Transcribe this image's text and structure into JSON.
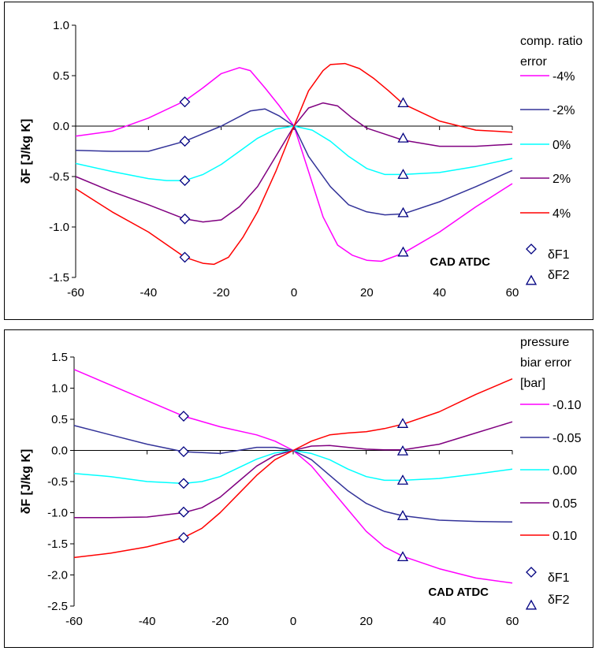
{
  "chart_data": [
    {
      "type": "line",
      "ylabel": "δF [J/kg K]",
      "annotation": "CAD ATDC",
      "xlim": [
        -60,
        60
      ],
      "ylim": [
        -1.5,
        1.0
      ],
      "xticks": [
        "-60",
        "-40",
        "-20",
        "0",
        "20",
        "40",
        "60"
      ],
      "yticks": [
        "1.0",
        "0.5",
        "0.0",
        "-0.5",
        "-1.0",
        "-1.5"
      ],
      "legend_title": [
        "comp. ratio",
        "error"
      ],
      "legend_placement": "right",
      "grid": false,
      "series": [
        {
          "name": "-4%",
          "color": "#ff00ff",
          "x": [
            -60,
            -50,
            -40,
            -30,
            -25,
            -20,
            -15,
            -12,
            -8,
            -4,
            0,
            4,
            8,
            12,
            16,
            20,
            24,
            30,
            40,
            50,
            60
          ],
          "y": [
            -0.1,
            -0.05,
            0.08,
            0.25,
            0.38,
            0.52,
            0.58,
            0.55,
            0.38,
            0.2,
            0.0,
            -0.45,
            -0.9,
            -1.18,
            -1.28,
            -1.33,
            -1.34,
            -1.26,
            -1.05,
            -0.8,
            -0.57
          ]
        },
        {
          "name": "-2%",
          "color": "#333399",
          "x": [
            -60,
            -50,
            -40,
            -30,
            -20,
            -12,
            -8,
            -4,
            0,
            4,
            10,
            15,
            20,
            25,
            30,
            40,
            50,
            60
          ],
          "y": [
            -0.24,
            -0.25,
            -0.25,
            -0.15,
            0.0,
            0.15,
            0.17,
            0.1,
            0.0,
            -0.3,
            -0.6,
            -0.78,
            -0.85,
            -0.88,
            -0.87,
            -0.75,
            -0.6,
            -0.44
          ]
        },
        {
          "name": "0%",
          "color": "#00ffff",
          "x": [
            -60,
            -50,
            -40,
            -35,
            -30,
            -25,
            -20,
            -15,
            -10,
            -5,
            0,
            5,
            10,
            15,
            20,
            25,
            30,
            40,
            50,
            60
          ],
          "y": [
            -0.37,
            -0.45,
            -0.52,
            -0.54,
            -0.54,
            -0.48,
            -0.38,
            -0.25,
            -0.12,
            -0.03,
            0.0,
            -0.04,
            -0.15,
            -0.3,
            -0.42,
            -0.48,
            -0.48,
            -0.46,
            -0.4,
            -0.32
          ]
        },
        {
          "name": "2%",
          "color": "#800080",
          "x": [
            -60,
            -50,
            -40,
            -30,
            -25,
            -20,
            -15,
            -10,
            -5,
            0,
            4,
            8,
            12,
            16,
            20,
            25,
            30,
            40,
            50,
            60
          ],
          "y": [
            -0.5,
            -0.65,
            -0.78,
            -0.92,
            -0.95,
            -0.93,
            -0.8,
            -0.6,
            -0.3,
            0.0,
            0.18,
            0.23,
            0.2,
            0.08,
            -0.02,
            -0.08,
            -0.14,
            -0.2,
            -0.2,
            -0.18
          ]
        },
        {
          "name": "4%",
          "color": "#ff0000",
          "x": [
            -60,
            -50,
            -40,
            -30,
            -25,
            -22,
            -18,
            -14,
            -10,
            -5,
            0,
            4,
            8,
            10,
            14,
            18,
            22,
            26,
            30,
            40,
            50,
            60
          ],
          "y": [
            -0.62,
            -0.85,
            -1.05,
            -1.3,
            -1.36,
            -1.37,
            -1.3,
            -1.1,
            -0.85,
            -0.45,
            0.0,
            0.35,
            0.55,
            0.61,
            0.62,
            0.57,
            0.47,
            0.35,
            0.22,
            0.05,
            -0.04,
            -0.06
          ]
        }
      ],
      "markers": [
        {
          "name": "δF1",
          "symbol": "diamond",
          "x": -30,
          "y": [
            0.24,
            -0.15,
            -0.54,
            -0.92,
            -1.3
          ]
        },
        {
          "name": "δF2",
          "symbol": "triangle",
          "x": 30,
          "y": [
            0.23,
            -0.12,
            -0.48,
            -0.86,
            -1.25
          ]
        }
      ]
    },
    {
      "type": "line",
      "ylabel": "δF [J/kg K]",
      "annotation": "CAD ATDC",
      "xlim": [
        -60,
        60
      ],
      "ylim": [
        -2.5,
        1.5
      ],
      "xticks": [
        "-60",
        "-40",
        "-20",
        "0",
        "20",
        "40",
        "60"
      ],
      "yticks": [
        "1.5",
        "1.0",
        "0.5",
        "0.0",
        "-0.5",
        "-1.0",
        "-1.5",
        "-2.0",
        "-2.5"
      ],
      "legend_title": [
        "pressure",
        "biar error",
        "[bar]"
      ],
      "legend_placement": "right",
      "grid": false,
      "series": [
        {
          "name": "-0.10",
          "color": "#ff00ff",
          "x": [
            -60,
            -50,
            -40,
            -30,
            -20,
            -10,
            -5,
            0,
            5,
            10,
            15,
            20,
            25,
            30,
            40,
            50,
            60
          ],
          "y": [
            1.3,
            1.05,
            0.8,
            0.55,
            0.38,
            0.25,
            0.15,
            0.0,
            -0.25,
            -0.6,
            -0.95,
            -1.3,
            -1.55,
            -1.7,
            -1.9,
            -2.05,
            -2.13
          ]
        },
        {
          "name": "-0.05",
          "color": "#333399",
          "x": [
            -60,
            -50,
            -40,
            -30,
            -20,
            -10,
            -5,
            0,
            5,
            10,
            15,
            20,
            25,
            30,
            40,
            50,
            60
          ],
          "y": [
            0.4,
            0.25,
            0.1,
            -0.02,
            -0.05,
            0.05,
            0.05,
            0.0,
            -0.15,
            -0.4,
            -0.65,
            -0.85,
            -0.98,
            -1.05,
            -1.12,
            -1.14,
            -1.15
          ]
        },
        {
          "name": "0.00",
          "color": "#00ffff",
          "x": [
            -60,
            -50,
            -40,
            -30,
            -25,
            -20,
            -15,
            -10,
            -5,
            0,
            5,
            10,
            15,
            20,
            25,
            30,
            40,
            50,
            60
          ],
          "y": [
            -0.37,
            -0.42,
            -0.5,
            -0.53,
            -0.5,
            -0.42,
            -0.28,
            -0.14,
            -0.04,
            0.0,
            -0.05,
            -0.15,
            -0.3,
            -0.42,
            -0.48,
            -0.48,
            -0.45,
            -0.38,
            -0.3
          ]
        },
        {
          "name": "0.05",
          "color": "#800080",
          "x": [
            -60,
            -50,
            -40,
            -30,
            -25,
            -20,
            -15,
            -10,
            -5,
            0,
            5,
            10,
            15,
            20,
            25,
            30,
            40,
            50,
            60
          ],
          "y": [
            -1.08,
            -1.08,
            -1.07,
            -1.0,
            -0.92,
            -0.75,
            -0.5,
            -0.25,
            -0.08,
            0.0,
            0.07,
            0.08,
            0.05,
            0.02,
            0.01,
            0.01,
            0.1,
            0.28,
            0.46
          ]
        },
        {
          "name": "0.10",
          "color": "#ff0000",
          "x": [
            -60,
            -50,
            -40,
            -30,
            -25,
            -20,
            -15,
            -10,
            -5,
            0,
            5,
            10,
            15,
            20,
            25,
            30,
            40,
            50,
            60
          ],
          "y": [
            -1.72,
            -1.65,
            -1.55,
            -1.4,
            -1.25,
            -1.0,
            -0.7,
            -0.4,
            -0.15,
            0.0,
            0.15,
            0.25,
            0.28,
            0.3,
            0.35,
            0.42,
            0.62,
            0.9,
            1.15
          ]
        }
      ],
      "markers": [
        {
          "name": "δF1",
          "symbol": "diamond",
          "x": -30,
          "y": [
            0.55,
            -0.02,
            -0.53,
            -0.99,
            -1.4
          ]
        },
        {
          "name": "δF2",
          "symbol": "triangle",
          "x": 30,
          "y": [
            0.43,
            -0.01,
            -0.48,
            -1.05,
            -1.71
          ]
        }
      ]
    }
  ]
}
